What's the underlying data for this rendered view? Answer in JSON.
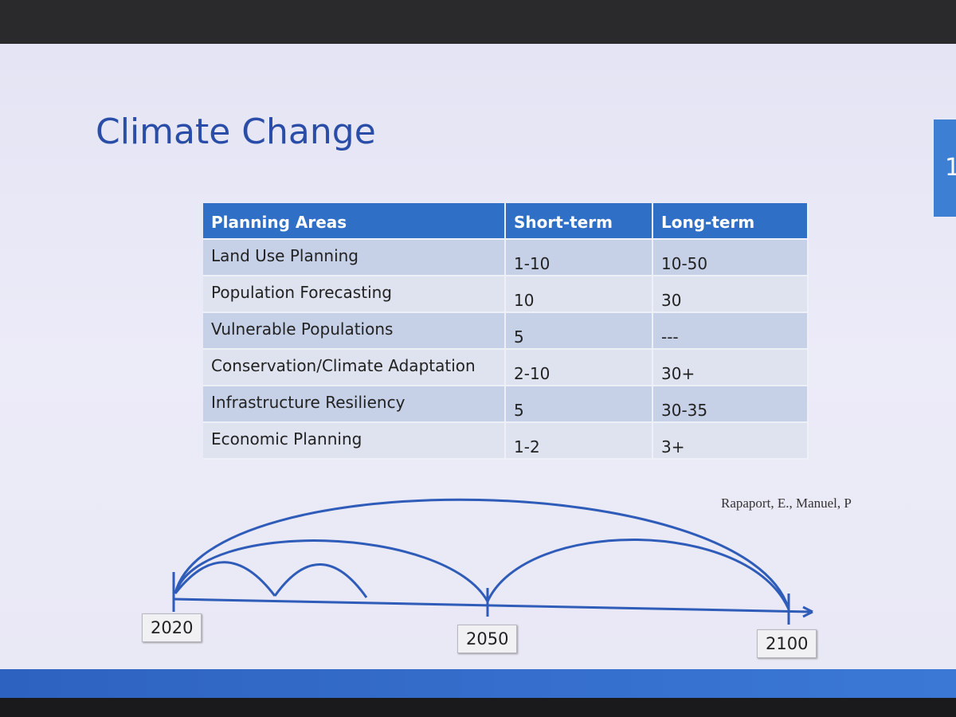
{
  "title": "Climate Change",
  "slide_number": "1",
  "table": {
    "header": [
      "Planning Areas",
      "Short-term",
      "Long-term"
    ],
    "rows": [
      [
        "Land Use Planning",
        "1-10",
        "10-50"
      ],
      [
        "Population Forecasting",
        10,
        30
      ],
      [
        "Vulnerable Populations",
        5,
        "---"
      ],
      [
        "Conservation/Climate Adaptation",
        "2-10",
        "30+"
      ],
      [
        "Infrastructure Resiliency",
        5,
        "30-35"
      ],
      [
        "Economic Planning",
        "1-2",
        "3+"
      ]
    ]
  },
  "citation": "Rapaport, E., Manuel, P",
  "timeline": {
    "labels": [
      "2020",
      "2050",
      "2100"
    ]
  }
}
